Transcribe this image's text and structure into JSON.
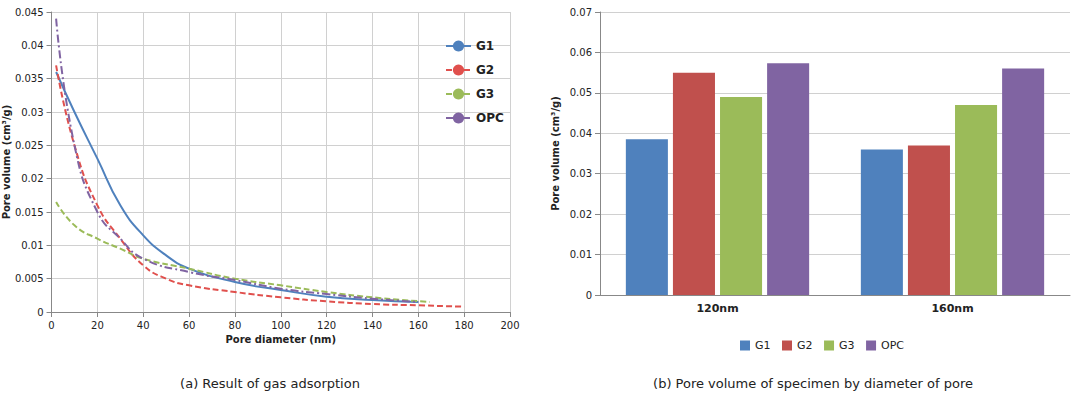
{
  "chart_data": [
    {
      "type": "line",
      "title": "(a) Result of gas adsorption",
      "xlabel": "Pore diameter (nm)",
      "ylabel": "Pore volume (cm³/g)",
      "series": [
        {
          "name": "G1",
          "color": "#4f81bd",
          "line_style": "solid",
          "x": [
            2,
            10,
            20,
            30,
            40,
            50,
            60,
            80,
            100,
            120,
            140,
            160
          ],
          "values": [
            0.036,
            0.03,
            0.023,
            0.016,
            0.0115,
            0.0085,
            0.0065,
            0.0045,
            0.0033,
            0.0023,
            0.0018,
            0.0015
          ]
        },
        {
          "name": "G2",
          "color": "#e0504d",
          "line_style": "dashed",
          "x": [
            2,
            10,
            20,
            30,
            40,
            50,
            60,
            80,
            100,
            120,
            140,
            160,
            180
          ],
          "values": [
            0.037,
            0.025,
            0.016,
            0.011,
            0.007,
            0.005,
            0.004,
            0.003,
            0.0022,
            0.0016,
            0.0012,
            0.001,
            0.0008
          ]
        },
        {
          "name": "G3",
          "color": "#9bbb59",
          "line_style": "dashed",
          "x": [
            2,
            10,
            20,
            30,
            40,
            60,
            80,
            100,
            120,
            140,
            165
          ],
          "values": [
            0.0165,
            0.013,
            0.011,
            0.0095,
            0.008,
            0.0065,
            0.005,
            0.004,
            0.003,
            0.0022,
            0.0015
          ]
        },
        {
          "name": "OPC",
          "color": "#8064a2",
          "line_style": "dashdot",
          "x": [
            2,
            10,
            20,
            30,
            40,
            60,
            80,
            100,
            120,
            140,
            160
          ],
          "values": [
            0.044,
            0.025,
            0.015,
            0.011,
            0.008,
            0.006,
            0.0048,
            0.0035,
            0.0027,
            0.002,
            0.0015
          ]
        }
      ],
      "xlim": [
        0,
        200
      ],
      "xticks": [
        0,
        20,
        40,
        60,
        80,
        100,
        120,
        140,
        160,
        180,
        200
      ],
      "ylim": [
        0,
        0.045
      ],
      "yticks": [
        0,
        0.005,
        0.01,
        0.015,
        0.02,
        0.025,
        0.03,
        0.035,
        0.04,
        0.045
      ],
      "grid": true,
      "legend": "upper right"
    },
    {
      "type": "bar",
      "title": "(b) Pore volume of specimen by diameter of pore",
      "ylabel": "Pore volume (cm³/g)",
      "categories": [
        "120nm",
        "160nm"
      ],
      "series": [
        {
          "name": "G1",
          "color": "#4f81bd",
          "values": [
            0.0385,
            0.036
          ]
        },
        {
          "name": "G2",
          "color": "#c0504d",
          "values": [
            0.055,
            0.037
          ]
        },
        {
          "name": "G3",
          "color": "#9bbb59",
          "values": [
            0.049,
            0.047
          ]
        },
        {
          "name": "OPC",
          "color": "#8064a2",
          "values": [
            0.0573,
            0.056
          ]
        }
      ],
      "ylim": [
        0,
        0.07
      ],
      "yticks": [
        0,
        0.01,
        0.02,
        0.03,
        0.04,
        0.05,
        0.06,
        0.07
      ],
      "grid": true,
      "legend": "bottom"
    }
  ]
}
